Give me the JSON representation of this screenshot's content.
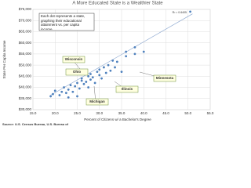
{
  "chart_data": {
    "type": "scatter",
    "title": "A More Educated State is a Wealthier State",
    "x_label": "Percent of Citizens w/ a Bachelor's Degree",
    "y_label": "State Per Capita Income",
    "source": "Source: U.S. Census Bureau, U.S. Bureau of",
    "note": "Each dot represents a state, graphing their educational attainment vs. per capita income.",
    "r_squared": "R² = 0.6405",
    "annotations": [
      "Wisconsin",
      "Ohio",
      "Minnesota",
      "Illinois",
      "Michigan"
    ],
    "color": "#4f81bd",
    "x": [
      19.5,
      20,
      21,
      21.5,
      22,
      22.5,
      23,
      23.5,
      24,
      24.5,
      25,
      25.5,
      26,
      26,
      26.5,
      27,
      27.5,
      27.5,
      28,
      28,
      28.5,
      29,
      29.5,
      30,
      30,
      30.5,
      31,
      31.5,
      32,
      32.5,
      33,
      33.5,
      34,
      35,
      36,
      36,
      38,
      38,
      40,
      19,
      23,
      25,
      50.5
    ],
    "y": [
      37000,
      38500,
      36500,
      38000,
      40000,
      37500,
      39000,
      41000,
      38000,
      40500,
      42000,
      39500,
      43000,
      44000,
      41500,
      42500,
      40000,
      45000,
      43500,
      46000,
      44500,
      42000,
      47000,
      45500,
      48000,
      44000,
      49000,
      46500,
      50000,
      47500,
      52000,
      49000,
      51500,
      47000,
      54000,
      56000,
      55000,
      58000,
      56000,
      36000,
      35500,
      36000,
      74000
    ],
    "trendline": {
      "x": [
        19,
        51
      ],
      "y": [
        36500,
        73000
      ]
    },
    "xlim": [
      15,
      55
    ],
    "xticks": [
      {
        "value": 15,
        "label": "15.0"
      },
      {
        "value": 20,
        "label": "20.0"
      },
      {
        "value": 25,
        "label": "25.0"
      },
      {
        "value": 30,
        "label": "30.0"
      },
      {
        "value": 35,
        "label": "35.0"
      },
      {
        "value": 40,
        "label": "40.0"
      },
      {
        "value": 45,
        "label": "45.0"
      },
      {
        "value": 50,
        "label": "50.0"
      },
      {
        "value": 55,
        "label": "55.0"
      }
    ],
    "ylim": [
      30000,
      75000
    ],
    "yticks": [
      {
        "value": 30000,
        "label": "$30,000"
      },
      {
        "value": 35000,
        "label": "$35,000"
      },
      {
        "value": 40000,
        "label": "$40,000"
      },
      {
        "value": 45000,
        "label": "$45,000"
      },
      {
        "value": 50000,
        "label": "$50,000"
      },
      {
        "value": 55000,
        "label": "$55,000"
      },
      {
        "value": 60000,
        "label": "$60,000"
      },
      {
        "value": 65000,
        "label": "$65,000"
      },
      {
        "value": 70000,
        "label": "$70,000"
      },
      {
        "value": 75000,
        "label": "$75,000"
      }
    ],
    "grid": true
  }
}
